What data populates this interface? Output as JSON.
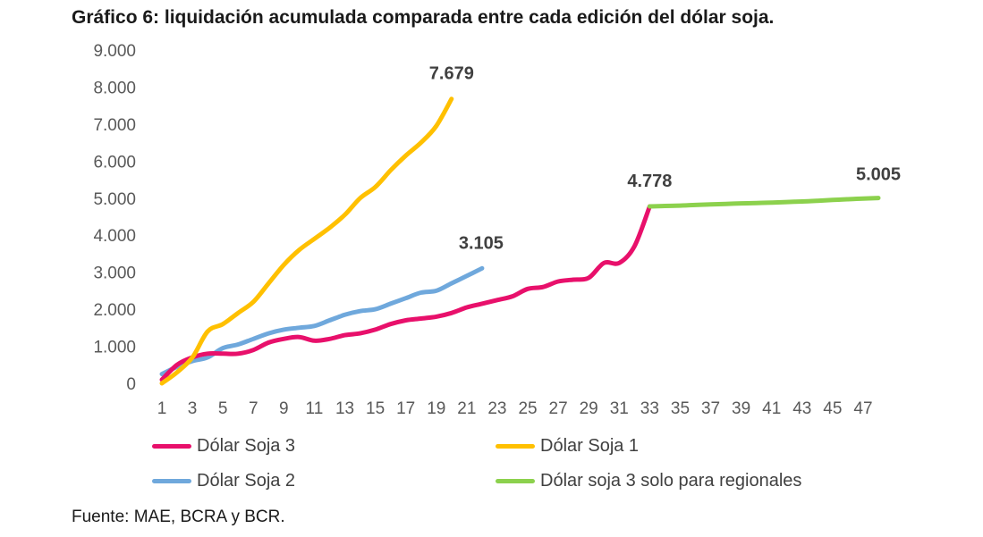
{
  "title": "Gráfico 6: liquidación acumulada comparada entre cada edición del dólar soja.",
  "source": "Fuente: MAE, BCRA y BCR.",
  "chart_data": {
    "type": "line",
    "ylim": [
      0,
      9000
    ],
    "yticks": [
      "0",
      "1.000",
      "2.000",
      "3.000",
      "4.000",
      "5.000",
      "6.000",
      "7.000",
      "8.000",
      "9.000"
    ],
    "yticks_values": [
      0,
      1000,
      2000,
      3000,
      4000,
      5000,
      6000,
      7000,
      8000,
      9000
    ],
    "xlim": [
      1,
      48
    ],
    "xticks": [
      1,
      3,
      5,
      7,
      9,
      11,
      13,
      15,
      17,
      19,
      21,
      23,
      25,
      27,
      29,
      31,
      33,
      35,
      37,
      39,
      41,
      43,
      45,
      47
    ],
    "grid": false,
    "legend_position": "bottom",
    "series": [
      {
        "name": "Dólar Soja 3",
        "color": "#E8106B",
        "x": [
          1,
          2,
          3,
          4,
          5,
          6,
          7,
          8,
          9,
          10,
          11,
          12,
          13,
          14,
          15,
          16,
          17,
          18,
          19,
          20,
          21,
          22,
          23,
          24,
          25,
          26,
          27,
          28,
          29,
          30,
          31,
          32,
          33
        ],
        "values": [
          100,
          500,
          700,
          800,
          800,
          800,
          900,
          1100,
          1200,
          1250,
          1150,
          1200,
          1300,
          1350,
          1450,
          1600,
          1700,
          1750,
          1800,
          1900,
          2050,
          2150,
          2250,
          2350,
          2550,
          2600,
          2750,
          2800,
          2850,
          3250,
          3250,
          3700,
          4778
        ]
      },
      {
        "name": "Dólar Soja 1",
        "color": "#FFC000",
        "x": [
          1,
          2,
          3,
          4,
          5,
          6,
          7,
          8,
          9,
          10,
          11,
          12,
          13,
          14,
          15,
          16,
          17,
          18,
          19,
          20
        ],
        "values": [
          0,
          300,
          700,
          1400,
          1600,
          1900,
          2200,
          2700,
          3200,
          3600,
          3900,
          4200,
          4550,
          5000,
          5300,
          5750,
          6150,
          6500,
          6950,
          7679
        ]
      },
      {
        "name": "Dólar Soja 2",
        "color": "#6FA8DC",
        "x": [
          1,
          2,
          3,
          4,
          5,
          6,
          7,
          8,
          9,
          10,
          11,
          12,
          13,
          14,
          15,
          16,
          17,
          18,
          19,
          20,
          21,
          22
        ],
        "values": [
          250,
          450,
          600,
          700,
          950,
          1050,
          1200,
          1350,
          1450,
          1500,
          1550,
          1700,
          1850,
          1950,
          2000,
          2150,
          2300,
          2450,
          2500,
          2700,
          2900,
          3105
        ]
      },
      {
        "name": "Dólar soja 3 solo para regionales",
        "color": "#8CD14D",
        "x": [
          33,
          34,
          35,
          36,
          37,
          38,
          39,
          40,
          41,
          42,
          43,
          44,
          45,
          46,
          47,
          48
        ],
        "values": [
          4778,
          4790,
          4800,
          4815,
          4830,
          4845,
          4860,
          4870,
          4880,
          4895,
          4910,
          4930,
          4950,
          4970,
          4990,
          5005
        ]
      }
    ],
    "annotations": [
      {
        "text": "7.679",
        "series": "Dólar Soja 1"
      },
      {
        "text": "4.778",
        "series": "Dólar Soja 3"
      },
      {
        "text": "3.105",
        "series": "Dólar Soja 2"
      },
      {
        "text": "5.005",
        "series": "Dólar soja 3 solo para regionales"
      }
    ]
  }
}
